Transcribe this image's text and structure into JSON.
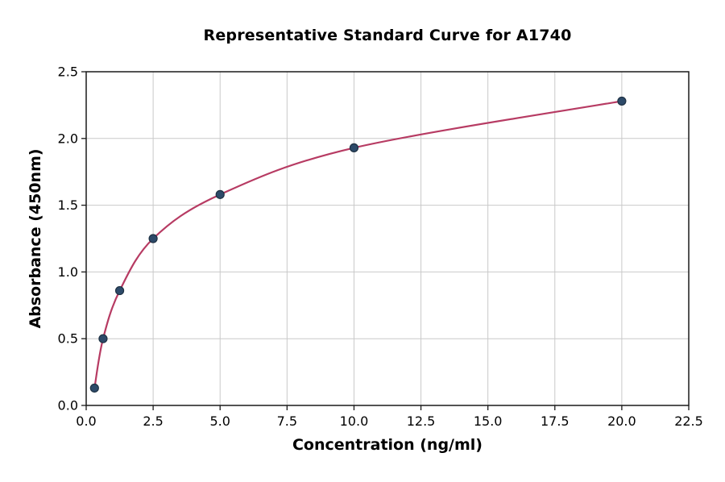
{
  "chart_data": {
    "type": "scatter",
    "title": "Representative Standard Curve for A1740",
    "xlabel": "Concentration (ng/ml)",
    "ylabel": "Absorbance (450nm)",
    "x": [
      0.31,
      0.63,
      1.25,
      2.5,
      5,
      10,
      20
    ],
    "y": [
      0.13,
      0.5,
      0.86,
      1.25,
      1.58,
      1.93,
      2.28
    ],
    "curve": "smooth fitted line passing through all data points, from first point to last point",
    "xlim": [
      0,
      22.5
    ],
    "ylim": [
      0,
      2.5
    ],
    "xticks": [
      0,
      2.5,
      5,
      7.5,
      10,
      12.5,
      15,
      17.5,
      20,
      22.5
    ],
    "yticks": [
      0,
      0.5,
      1,
      1.5,
      2,
      2.5
    ],
    "tick_label_format": "one decimal place",
    "grid": true,
    "legend": "none",
    "colors": {
      "line": "#b73b63",
      "marker": "#2d4a69",
      "marker_edge": "#1e3143",
      "grid": "#c9c9c9",
      "axis": "#1a1a1a",
      "text": "#000000",
      "background": "#ffffff"
    }
  }
}
